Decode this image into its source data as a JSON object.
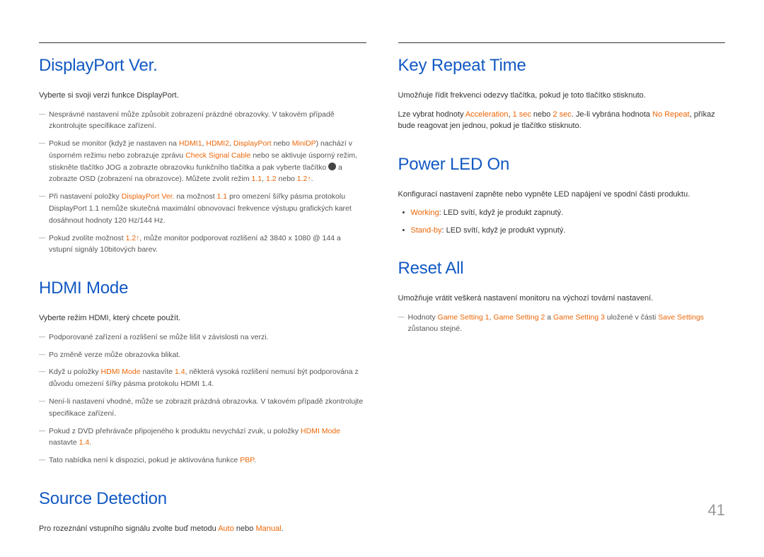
{
  "page_number": "41",
  "colors": {
    "heading": "#1259c3",
    "highlight": "#ec6608",
    "body": "#333333",
    "note": "#555555",
    "pagenum": "#999999"
  },
  "left": {
    "s1": {
      "heading": "DisplayPort Ver.",
      "intro": "Vyberte si svoji verzi funkce DisplayPort.",
      "n1a": "Nesprávné nastavení může způsobit zobrazení prázdné obrazovky. V takovém případě zkontrolujte specifikace zařízení.",
      "n2a": "Pokud se monitor (když je nastaven na ",
      "n2_hdmi1": "HDMI1",
      "n2_c1": ", ",
      "n2_hdmi2": "HDMI2",
      "n2_c2": ", ",
      "n2_dp": "DisplayPort",
      "n2_or": " nebo ",
      "n2_minidp": "MiniDP",
      "n2b": ") nachází v úsporném režimu nebo zobrazuje zprávu ",
      "n2_csc": "Check Signal Cable",
      "n2c": " nebo se aktivuje úsporný režim, stiskněte tlačítko JOG a zobrazte obrazovku funkčního tlačítka a pak vyberte tlačítko ",
      "n2d": " a zobrazte OSD (zobrazení na obrazovce). Můžete zvolit režim ",
      "n2_11": "1.1",
      "n2_c3": ", ",
      "n2_12": "1.2",
      "n2_or2": " nebo ",
      "n2_12p": "1.2↑",
      "n2_dot": ".",
      "n3a": "Při nastavení položky ",
      "n3_dpv": "DisplayPort Ver.",
      "n3b": " na možnost ",
      "n3_11": "1.1",
      "n3c": " pro omezení šířky pásma protokolu DisplayPort 1.1 nemůže skutečná maximální obnovovací frekvence výstupu grafických karet dosáhnout hodnoty 120 Hz/144 Hz.",
      "n4a": "Pokud zvolíte možnost ",
      "n4_12p": "1.2↑",
      "n4b": ", může monitor podporovat rozlišení až 3840 x 1080 @ 144 a vstupní signály 10bitových barev."
    },
    "s2": {
      "heading": "HDMI Mode",
      "intro": "Vyberte režim HDMI, který chcete použít.",
      "n1": "Podporované zařízení a rozlišení se může lišit v závislosti na verzi.",
      "n2": "Po změně verze může obrazovka blikat.",
      "n3a": "Když u položky ",
      "n3_hm": "HDMI Mode",
      "n3b": " nastavíte ",
      "n3_14": "1.4",
      "n3c": ", některá vysoká rozlišení nemusí být podporována z důvodu omezení šířky pásma protokolu HDMI 1.4.",
      "n4": "Není-li nastavení vhodné, může se zobrazit prázdná obrazovka. V takovém případě zkontrolujte specifikace zařízení.",
      "n5a": "Pokud z DVD přehrávače připojeného k produktu nevychází zvuk, u položky ",
      "n5_hm": "HDMI Mode",
      "n5b": " nastavte ",
      "n5_14": "1.4",
      "n5c": ".",
      "n6a": "Tato nabídka není k dispozici, pokud je aktivována funkce ",
      "n6_pbp": "PBP",
      "n6b": "."
    },
    "s3": {
      "heading": "Source Detection",
      "p1a": "Pro rozeznání vstupního signálu zvolte buď metodu ",
      "p1_auto": "Auto",
      "p1_or": " nebo ",
      "p1_manual": "Manual",
      "p1b": "."
    }
  },
  "right": {
    "s1": {
      "heading": "Key Repeat Time",
      "p1": "Umožňuje řídit frekvenci odezvy tlačítka, pokud je toto tlačítko stisknuto.",
      "p2a": "Lze vybrat hodnoty ",
      "p2_acc": "Acceleration",
      "p2_c1": ", ",
      "p2_1s": "1 sec",
      "p2_or1": " nebo ",
      "p2_2s": "2 sec",
      "p2b": ". Je-li vybrána hodnota ",
      "p2_nr": "No Repeat",
      "p2c": ", příkaz bude reagovat jen jednou, pokud je tlačítko stisknuto."
    },
    "s2": {
      "heading": "Power LED On",
      "p1": "Konfigurací nastavení zapněte nebo vypněte LED napájení ve spodní části produktu.",
      "b1_hl": "Working",
      "b1": ": LED svítí, když je produkt zapnutý.",
      "b2_hl": "Stand-by",
      "b2": ": LED svítí, když je produkt vypnutý."
    },
    "s3": {
      "heading": "Reset All",
      "p1": "Umožňuje vrátit veškerá nastavení monitoru na výchozí tovární nastavení.",
      "n1a": "Hodnoty ",
      "n1_g1": "Game Setting 1",
      "n1_c1": ", ",
      "n1_g2": "Game Setting 2",
      "n1_and": " a ",
      "n1_g3": "Game Setting 3",
      "n1b": " uložené v části ",
      "n1_ss": "Save Settings",
      "n1c": " zůstanou stejné."
    }
  }
}
